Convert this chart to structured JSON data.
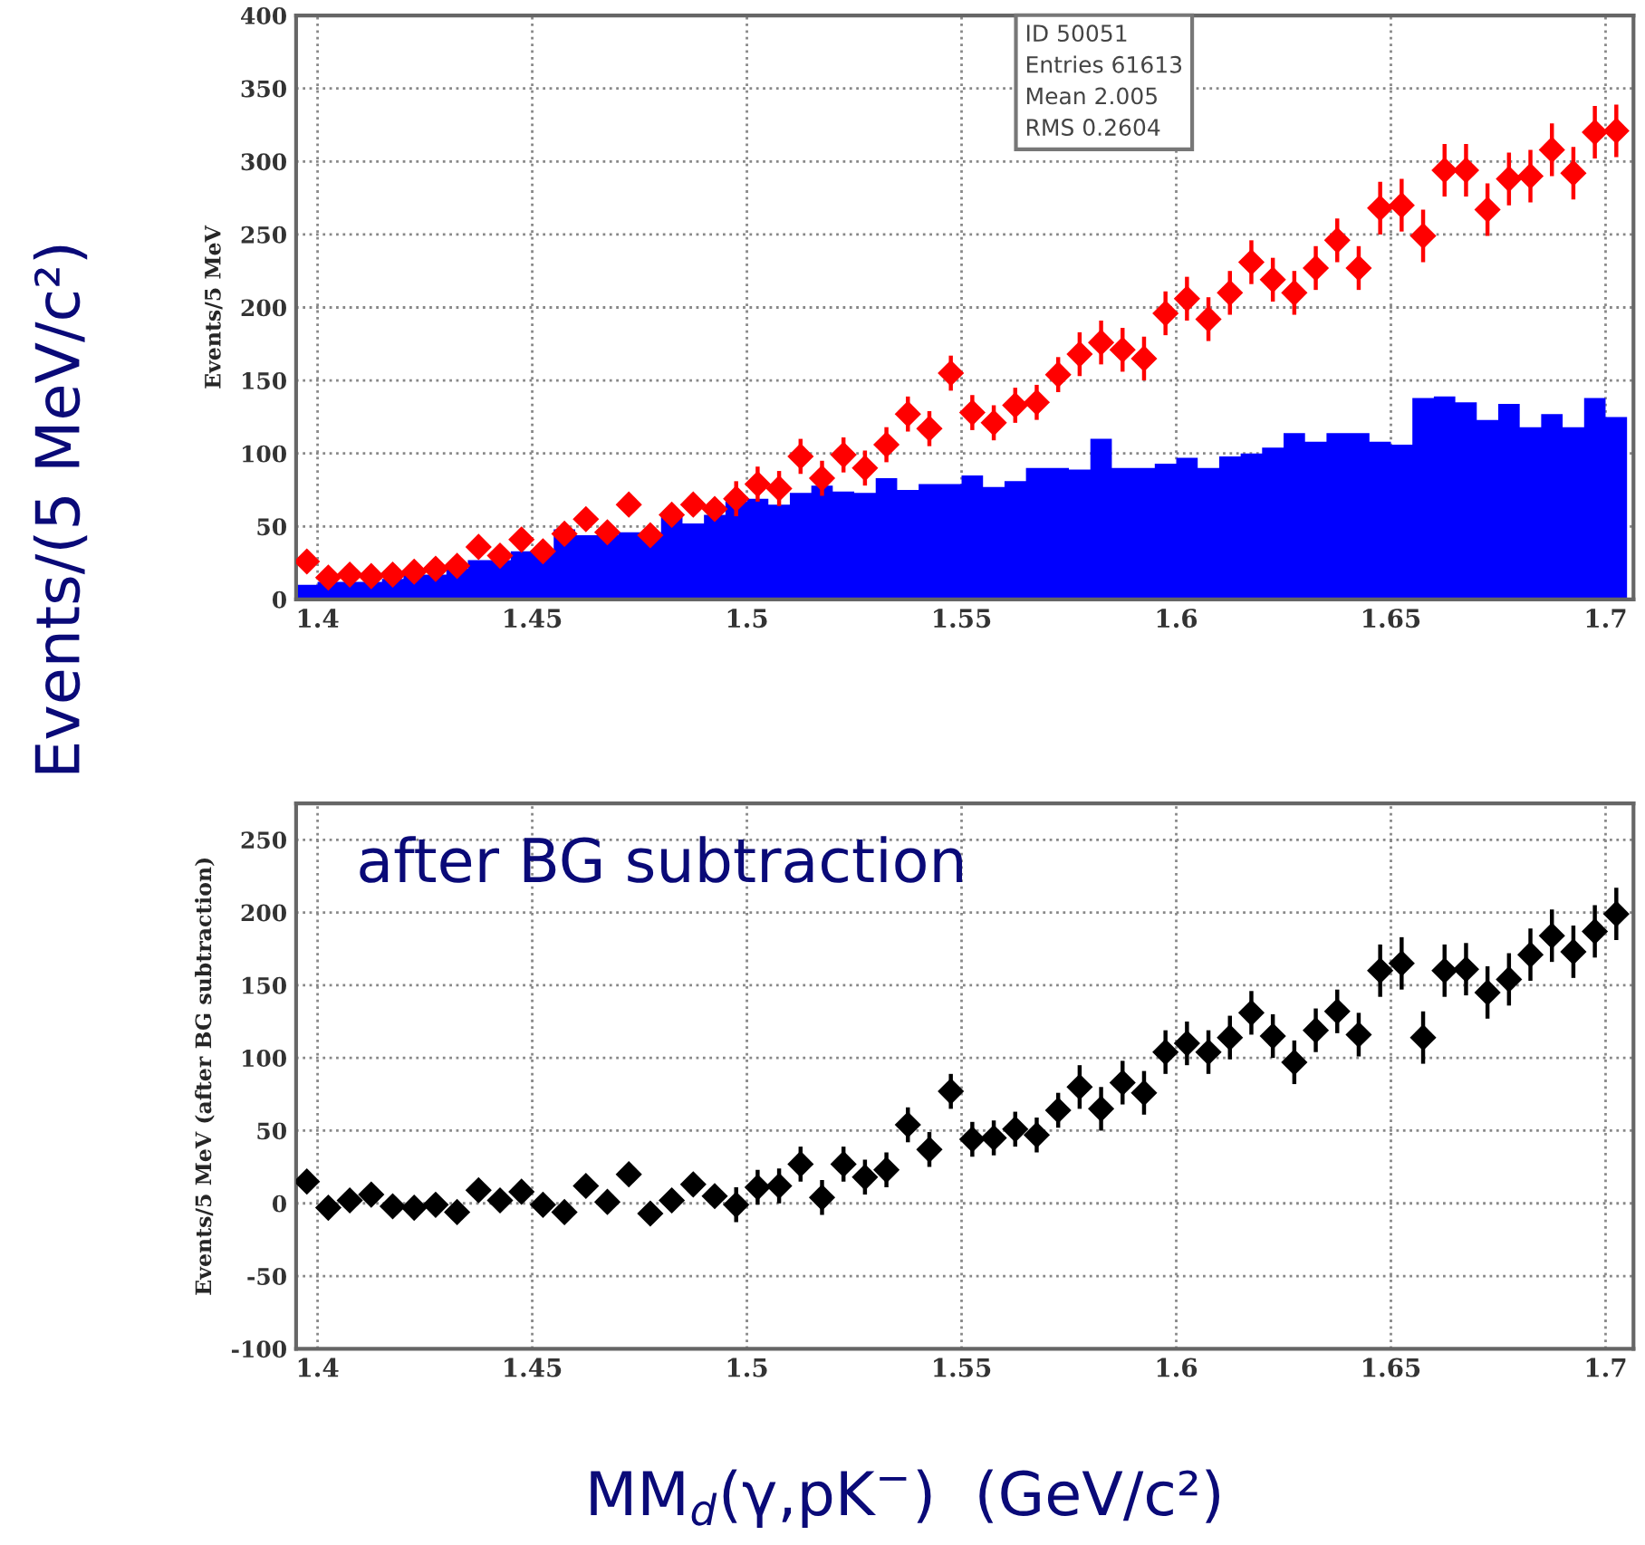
{
  "chart_data": [
    {
      "type": "scatter",
      "ylabel": "Events/5 MeV",
      "xlim": [
        1.395,
        1.7065
      ],
      "ylim": [
        0,
        400
      ],
      "xticks": [
        {
          "value": 1.4,
          "label": "1.4"
        },
        {
          "value": 1.45,
          "label": "1.45"
        },
        {
          "value": 1.5,
          "label": "1.5"
        },
        {
          "value": 1.55,
          "label": "1.55"
        },
        {
          "value": 1.6,
          "label": "1.6"
        },
        {
          "value": 1.65,
          "label": "1.65"
        },
        {
          "value": 1.7,
          "label": "1.7"
        }
      ],
      "yticks": [
        0,
        50,
        100,
        150,
        200,
        250,
        300,
        350,
        400
      ],
      "grid": true,
      "legend": false,
      "marker": "diamond",
      "annotations": [
        "ID 50051",
        "Entries 61613",
        "Mean 2.005",
        "RMS 0.2604"
      ],
      "series": [
        {
          "type": "histogram",
          "color": "#0000ff",
          "bins": [
            1.395,
            1.4,
            1.405,
            1.41,
            1.415,
            1.42,
            1.425,
            1.43,
            1.435,
            1.44,
            1.445,
            1.45,
            1.455,
            1.46,
            1.465,
            1.47,
            1.475,
            1.48,
            1.485,
            1.49,
            1.495,
            1.5,
            1.505,
            1.51,
            1.515,
            1.52,
            1.525,
            1.53,
            1.535,
            1.54,
            1.545,
            1.55,
            1.555,
            1.56,
            1.565,
            1.57,
            1.575,
            1.58,
            1.585,
            1.59,
            1.595,
            1.6,
            1.605,
            1.61,
            1.615,
            1.62,
            1.625,
            1.63,
            1.635,
            1.64,
            1.645,
            1.65,
            1.655,
            1.66,
            1.665,
            1.67,
            1.675,
            1.68,
            1.685,
            1.69,
            1.695,
            1.7,
            1.705
          ],
          "values": [
            10,
            12,
            12,
            12,
            14,
            17,
            17,
            21,
            27,
            27,
            33,
            33,
            48,
            44,
            44,
            46,
            46,
            58,
            52,
            58,
            67,
            69,
            65,
            73,
            78,
            74,
            73,
            83,
            75,
            79,
            79,
            85,
            77,
            81,
            90,
            90,
            89,
            110,
            90,
            90,
            93,
            97,
            90,
            98,
            100,
            104,
            114,
            108,
            114,
            114,
            108,
            106,
            138,
            139,
            135,
            123,
            134,
            118,
            127,
            118,
            138,
            125
          ]
        },
        {
          "color": "#ff0000",
          "x": [
            1.3975,
            1.4025,
            1.4075,
            1.4125,
            1.4175,
            1.4225,
            1.4275,
            1.4325,
            1.4375,
            1.4425,
            1.4475,
            1.4525,
            1.4575,
            1.4625,
            1.4675,
            1.4725,
            1.4775,
            1.4825,
            1.4875,
            1.4925,
            1.4975,
            1.5025,
            1.5075,
            1.5125,
            1.5175,
            1.5225,
            1.5275,
            1.5325,
            1.5375,
            1.5425,
            1.5475,
            1.5525,
            1.5575,
            1.5625,
            1.5675,
            1.5725,
            1.5775,
            1.5825,
            1.5875,
            1.5925,
            1.5975,
            1.6025,
            1.6075,
            1.6125,
            1.6175,
            1.6225,
            1.6275,
            1.6325,
            1.6375,
            1.6425,
            1.6475,
            1.6525,
            1.6575,
            1.6625,
            1.6675,
            1.6725,
            1.6775,
            1.6825,
            1.6875,
            1.6925,
            1.6975,
            1.7025
          ],
          "values": [
            26,
            15,
            17,
            16,
            17,
            19,
            21,
            23,
            36,
            30,
            41,
            33,
            45,
            55,
            46,
            65,
            44,
            58,
            65,
            62,
            69,
            79,
            76,
            98,
            83,
            99,
            90,
            106,
            127,
            117,
            155,
            128,
            121,
            133,
            135,
            154,
            168,
            176,
            171,
            165,
            196,
            206,
            192,
            210,
            231,
            219,
            210,
            227,
            246,
            227,
            268,
            270,
            249,
            294,
            294,
            267,
            288,
            290,
            308,
            292,
            320,
            321
          ],
          "errors": [
            5,
            5,
            5,
            5,
            5,
            5,
            5,
            5,
            5,
            5,
            5,
            5,
            5,
            5,
            5,
            5,
            5,
            5,
            5,
            5,
            12,
            12,
            12,
            12,
            12,
            12,
            12,
            12,
            12,
            12,
            12,
            12,
            12,
            12,
            12,
            12,
            15,
            15,
            15,
            15,
            15,
            15,
            15,
            15,
            15,
            15,
            15,
            15,
            15,
            15,
            18,
            18,
            18,
            18,
            18,
            18,
            18,
            18,
            18,
            18,
            18,
            18
          ]
        }
      ]
    },
    {
      "type": "scatter",
      "ylabel": "Events/5 MeV (after BG subtraction)",
      "xlabel": "MM$_{d}$(γ,pK$^{−}$)  (GeV/c²)",
      "xlim": [
        1.395,
        1.7065
      ],
      "ylim": [
        -100,
        275
      ],
      "xticks": [
        {
          "value": 1.4,
          "label": "1.4"
        },
        {
          "value": 1.45,
          "label": "1.45"
        },
        {
          "value": 1.5,
          "label": "1.5"
        },
        {
          "value": 1.55,
          "label": "1.55"
        },
        {
          "value": 1.6,
          "label": "1.6"
        },
        {
          "value": 1.65,
          "label": "1.65"
        },
        {
          "value": 1.7,
          "label": "1.7"
        }
      ],
      "yticks": [
        {
          "value": -100,
          "label": "-100"
        },
        {
          "value": -50,
          "label": "-50"
        },
        0,
        50,
        100,
        150,
        200,
        250
      ],
      "grid": true,
      "legend": false,
      "marker": "diamond",
      "annotations": [
        "after BG subtraction",
        "Events/(5 MeV/c²)"
      ],
      "series": [
        {
          "color": "#000000",
          "x": [
            1.3975,
            1.4025,
            1.4075,
            1.4125,
            1.4175,
            1.4225,
            1.4275,
            1.4325,
            1.4375,
            1.4425,
            1.4475,
            1.4525,
            1.4575,
            1.4625,
            1.4675,
            1.4725,
            1.4775,
            1.4825,
            1.4875,
            1.4925,
            1.4975,
            1.5025,
            1.5075,
            1.5125,
            1.5175,
            1.5225,
            1.5275,
            1.5325,
            1.5375,
            1.5425,
            1.5475,
            1.5525,
            1.5575,
            1.5625,
            1.5675,
            1.5725,
            1.5775,
            1.5825,
            1.5875,
            1.5925,
            1.5975,
            1.6025,
            1.6075,
            1.6125,
            1.6175,
            1.6225,
            1.6275,
            1.6325,
            1.6375,
            1.6425,
            1.6475,
            1.6525,
            1.6575,
            1.6625,
            1.6675,
            1.6725,
            1.6775,
            1.6825,
            1.6875,
            1.6925,
            1.6975,
            1.7025
          ],
          "values": [
            15,
            -3,
            2,
            6,
            -2,
            -3,
            -1,
            -6,
            9,
            2,
            8,
            -1,
            -6,
            12,
            1,
            20,
            -7,
            2,
            13,
            5,
            -1,
            11,
            12,
            27,
            4,
            27,
            18,
            23,
            54,
            37,
            77,
            44,
            45,
            51,
            47,
            64,
            80,
            65,
            83,
            76,
            104,
            110,
            104,
            114,
            131,
            115,
            97,
            119,
            132,
            116,
            160,
            165,
            114,
            160,
            161,
            145,
            154,
            171,
            184,
            173,
            187,
            199
          ],
          "errors": [
            6,
            6,
            6,
            6,
            6,
            6,
            6,
            6,
            6,
            6,
            6,
            6,
            6,
            6,
            6,
            6,
            6,
            6,
            6,
            6,
            12,
            12,
            12,
            12,
            12,
            12,
            12,
            12,
            12,
            12,
            12,
            12,
            12,
            12,
            12,
            12,
            15,
            15,
            15,
            15,
            15,
            15,
            15,
            15,
            15,
            15,
            15,
            15,
            15,
            15,
            18,
            18,
            18,
            18,
            18,
            18,
            18,
            18,
            18,
            18,
            18,
            18
          ]
        }
      ]
    }
  ]
}
